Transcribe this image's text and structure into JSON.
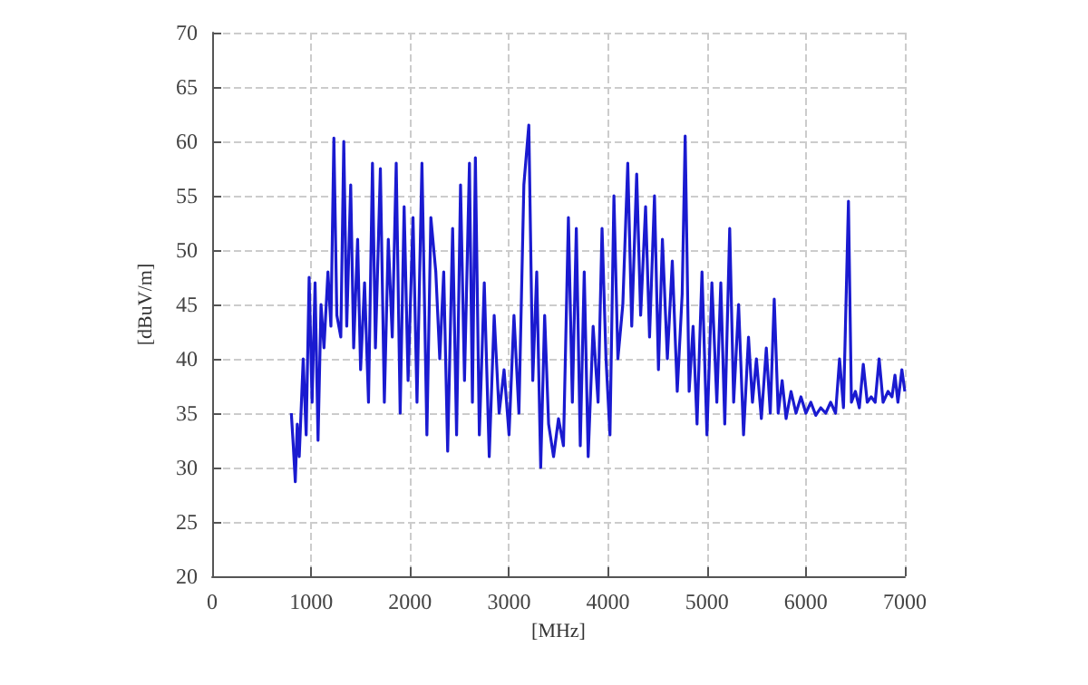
{
  "chart_data": {
    "type": "line",
    "xlabel": "[MHz]",
    "ylabel": "[dBuV/m]",
    "xlim": [
      0,
      7000
    ],
    "ylim": [
      20,
      70
    ],
    "xticks": [
      0,
      1000,
      2000,
      3000,
      4000,
      5000,
      6000,
      7000
    ],
    "yticks": [
      20,
      25,
      30,
      35,
      40,
      45,
      50,
      55,
      60,
      65,
      70
    ],
    "grid": true,
    "marker": "none",
    "line_style": "solid",
    "series": [
      {
        "color": "#1a1ad0",
        "x": [
          800,
          820,
          840,
          860,
          880,
          920,
          950,
          980,
          1010,
          1040,
          1070,
          1100,
          1130,
          1170,
          1200,
          1230,
          1260,
          1300,
          1330,
          1360,
          1400,
          1430,
          1470,
          1500,
          1540,
          1580,
          1620,
          1650,
          1700,
          1740,
          1780,
          1820,
          1860,
          1900,
          1940,
          1980,
          2030,
          2070,
          2120,
          2170,
          2210,
          2260,
          2300,
          2340,
          2380,
          2430,
          2470,
          2510,
          2550,
          2600,
          2630,
          2660,
          2700,
          2750,
          2800,
          2850,
          2900,
          2950,
          3000,
          3050,
          3100,
          3150,
          3200,
          3240,
          3280,
          3320,
          3360,
          3400,
          3450,
          3500,
          3550,
          3600,
          3640,
          3680,
          3720,
          3760,
          3800,
          3850,
          3900,
          3940,
          3980,
          4020,
          4060,
          4100,
          4150,
          4200,
          4240,
          4290,
          4330,
          4380,
          4420,
          4470,
          4510,
          4550,
          4600,
          4650,
          4700,
          4750,
          4780,
          4820,
          4860,
          4900,
          4950,
          5000,
          5050,
          5100,
          5140,
          5180,
          5230,
          5270,
          5320,
          5370,
          5420,
          5460,
          5500,
          5550,
          5600,
          5640,
          5680,
          5720,
          5760,
          5800,
          5850,
          5900,
          5950,
          6000,
          6050,
          6100,
          6150,
          6200,
          6250,
          6300,
          6340,
          6380,
          6430,
          6460,
          6500,
          6540,
          6580,
          6620,
          6660,
          6700,
          6740,
          6780,
          6830,
          6870,
          6900,
          6930,
          6970,
          7000
        ],
        "values": [
          35,
          32,
          28.7,
          34,
          31,
          40,
          33,
          47.5,
          36,
          47,
          32.5,
          45,
          41,
          48,
          43,
          60.3,
          44,
          42,
          60,
          43,
          56,
          41,
          51,
          39,
          47,
          36,
          58,
          41,
          57.5,
          36,
          51,
          42,
          58,
          35,
          54,
          38,
          53,
          36,
          58,
          33,
          53,
          48,
          40,
          48,
          31.5,
          52,
          33,
          56,
          38,
          58,
          36,
          58.5,
          33,
          47,
          31,
          44,
          35,
          39,
          33,
          44,
          35,
          56,
          61.5,
          38,
          48,
          30,
          44,
          34,
          31,
          34.5,
          32,
          53,
          36,
          52,
          32,
          48,
          31,
          43,
          36,
          52,
          40,
          33,
          55,
          40,
          45,
          58,
          43,
          57,
          44,
          54,
          42,
          55,
          39,
          51,
          40,
          49,
          37,
          46,
          60.5,
          37,
          43,
          34,
          48,
          33,
          47,
          36,
          47,
          34,
          52,
          36,
          45,
          33,
          42,
          36,
          40,
          34.5,
          41,
          35,
          45.5,
          35,
          38,
          34.5,
          37,
          35,
          36.5,
          35,
          36,
          34.8,
          35.5,
          35,
          36,
          35,
          40,
          35.5,
          54.5,
          36,
          37,
          35.5,
          39.5,
          36,
          36.5,
          36,
          40,
          36,
          37,
          36.5,
          38.5,
          36,
          39,
          37
        ]
      }
    ]
  }
}
